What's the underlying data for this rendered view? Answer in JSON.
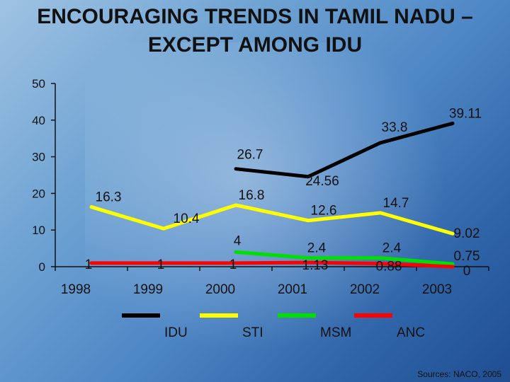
{
  "title_line1": "ENCOURAGING TRENDS IN TAMIL NADU –",
  "title_line2": "EXCEPT AMONG IDU",
  "source": "Sources: NACO, 2005",
  "chart_data": {
    "type": "line",
    "categories": [
      "1998",
      "1999",
      "2000",
      "2001",
      "2002",
      "2003"
    ],
    "ylim": [
      0,
      50
    ],
    "yticks": [
      0,
      10,
      20,
      30,
      40,
      50
    ],
    "legend_position": "bottom",
    "series": [
      {
        "name": "IDU",
        "color": "#000000",
        "values": [
          null,
          null,
          26.7,
          24.56,
          33.8,
          39.11
        ],
        "labels": [
          "",
          "",
          "26.7",
          "24.56",
          "33.8",
          "39.11"
        ]
      },
      {
        "name": "STI",
        "color": "#ffff00",
        "values": [
          16.3,
          10.4,
          16.8,
          12.6,
          14.7,
          9.02
        ],
        "labels": [
          "16.3",
          "10.4",
          "16.8",
          "12.6",
          "14.7",
          "9.02"
        ]
      },
      {
        "name": "MSM",
        "color": "#00e000",
        "values": [
          null,
          null,
          4,
          2.4,
          2.4,
          0.75
        ],
        "labels": [
          "",
          "",
          "4",
          "2.4",
          "2.4",
          "0.75"
        ]
      },
      {
        "name": "ANC",
        "color": "#ff0000",
        "values": [
          1,
          1,
          1,
          1.13,
          0.88,
          0
        ],
        "labels": [
          "1",
          "1",
          "1",
          "1.13",
          "0.88",
          "0"
        ]
      }
    ]
  }
}
